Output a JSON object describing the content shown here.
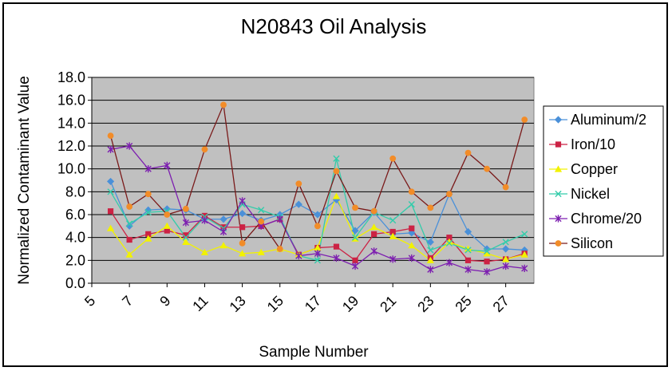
{
  "chart_data": {
    "type": "line",
    "title": "N20843 Oil Analysis",
    "xlabel": "Sample Number",
    "ylabel": "Normalized Contaminant Value",
    "ylim": [
      0,
      18
    ],
    "yticks": [
      "0.0",
      "2.0",
      "4.0",
      "6.0",
      "8.0",
      "10.0",
      "12.0",
      "14.0",
      "16.0",
      "18.0"
    ],
    "xticks": [
      "5",
      "7",
      "9",
      "11",
      "13",
      "15",
      "17",
      "19",
      "21",
      "23",
      "25",
      "27"
    ],
    "grid": "horizontal",
    "legend_position": "right",
    "x": [
      6,
      7,
      8,
      9,
      10,
      11,
      12,
      13,
      14,
      15,
      16,
      17,
      18,
      19,
      20,
      21,
      22,
      23,
      24,
      25,
      26,
      27,
      28
    ],
    "series": [
      {
        "name": "Aluminum/2",
        "color": "#4a90d9",
        "marker": "diamond",
        "values": [
          8.9,
          5.0,
          6.4,
          6.5,
          6.4,
          5.6,
          5.6,
          6.1,
          5.5,
          6.0,
          6.9,
          6.0,
          7.3,
          4.6,
          6.2,
          4.3,
          4.4,
          3.6,
          7.8,
          4.5,
          3.0,
          3.0,
          2.9
        ]
      },
      {
        "name": "Iron/10",
        "color": "#cc2244",
        "marker": "square",
        "values": [
          6.3,
          3.8,
          4.3,
          4.6,
          4.2,
          5.9,
          4.9,
          4.9,
          5.0,
          5.6,
          2.5,
          3.1,
          3.2,
          2.0,
          4.3,
          4.5,
          4.8,
          2.2,
          4.0,
          2.0,
          1.9,
          2.1,
          2.6
        ]
      },
      {
        "name": "Copper",
        "color": "#f2f200",
        "marker": "triangle",
        "values": [
          4.8,
          2.5,
          3.9,
          5.0,
          3.6,
          2.7,
          3.3,
          2.6,
          2.7,
          3.0,
          2.5,
          3.1,
          7.6,
          3.9,
          4.9,
          4.1,
          3.3,
          2.0,
          3.6,
          3.0,
          2.6,
          2.1,
          2.5
        ]
      },
      {
        "name": "Nickel",
        "color": "#33ccaa",
        "marker": "x",
        "values": [
          8.0,
          5.2,
          6.2,
          6.3,
          4.0,
          5.8,
          4.8,
          6.9,
          6.4,
          5.8,
          2.4,
          2.0,
          10.9,
          4.0,
          6.2,
          5.5,
          6.9,
          2.9,
          3.5,
          2.9,
          2.8,
          3.6,
          4.3
        ]
      },
      {
        "name": "Chrome/20",
        "color": "#7d1fb0",
        "marker": "star",
        "values": [
          11.7,
          12.0,
          10.0,
          10.3,
          5.3,
          5.5,
          4.5,
          7.2,
          5.0,
          5.6,
          2.4,
          2.6,
          2.2,
          1.5,
          2.8,
          2.1,
          2.2,
          1.2,
          1.8,
          1.2,
          1.0,
          1.5,
          1.3
        ]
      },
      {
        "name": "Silicon",
        "color": "#f28c28",
        "line_color": "#7a1a1a",
        "marker": "circle",
        "values": [
          12.9,
          6.7,
          7.8,
          6.0,
          6.5,
          11.7,
          15.6,
          3.5,
          5.4,
          3.0,
          8.7,
          5.0,
          9.8,
          6.6,
          6.3,
          10.9,
          8.0,
          6.6,
          7.8,
          11.4,
          10.0,
          8.4,
          14.3
        ]
      }
    ]
  }
}
